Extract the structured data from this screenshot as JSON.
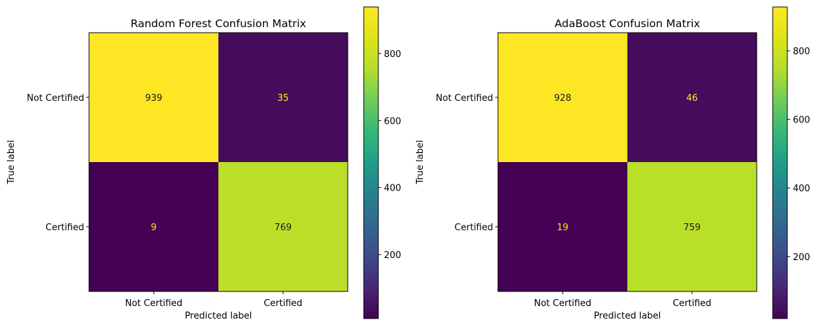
{
  "chart_data": [
    {
      "type": "heatmap",
      "title": "Random Forest Confusion Matrix",
      "xlabel": "Predicted label",
      "ylabel": "True label",
      "x_categories": [
        "Not Certified",
        "Certified"
      ],
      "y_categories": [
        "Not Certified",
        "Certified"
      ],
      "matrix": [
        [
          939,
          35
        ],
        [
          9,
          769
        ]
      ],
      "colormap": "viridis",
      "colorbar": {
        "min": 9,
        "max": 939,
        "ticks": [
          200,
          400,
          600,
          800
        ]
      }
    },
    {
      "type": "heatmap",
      "title": "AdaBoost Confusion Matrix",
      "xlabel": "Predicted label",
      "ylabel": "True label",
      "x_categories": [
        "Not Certified",
        "Certified"
      ],
      "y_categories": [
        "Not Certified",
        "Certified"
      ],
      "matrix": [
        [
          928,
          46
        ],
        [
          19,
          759
        ]
      ],
      "colormap": "viridis",
      "colorbar": {
        "min": 19,
        "max": 928,
        "ticks": [
          200,
          400,
          600,
          800
        ]
      }
    }
  ]
}
